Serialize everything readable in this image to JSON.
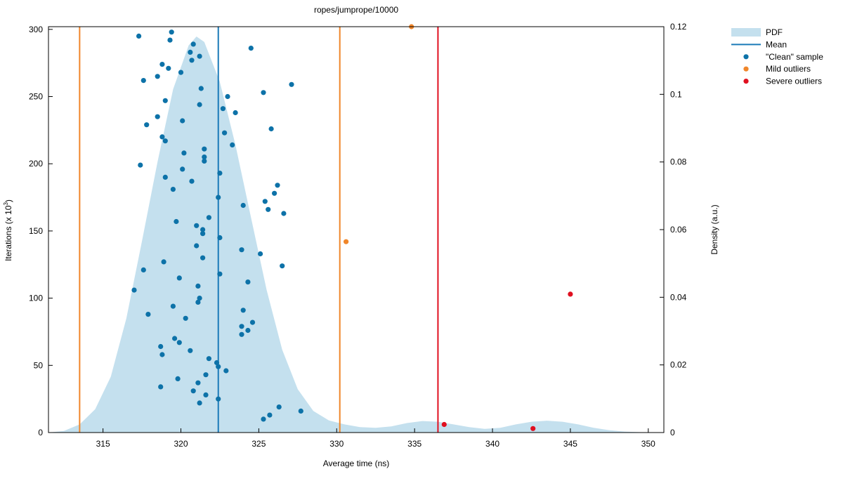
{
  "chart_data": {
    "type": "scatter",
    "title": "ropes/jumprope/10000",
    "xlabel": "Average time (ns)",
    "ylabel": "Iterations (x 10",
    "ylabel_exponent": "3",
    "ylabel_close": ")",
    "y2label": "Density (a.u.)",
    "xlim": [
      311.5,
      351
    ],
    "ylim": [
      0,
      302
    ],
    "y2lim": [
      0,
      0.12
    ],
    "grid": false,
    "legend_position": "outside-top-right",
    "x_ticks": [
      315,
      320,
      325,
      330,
      335,
      340,
      345,
      350
    ],
    "x_tick_labels": [
      "315",
      "320",
      "325",
      "330",
      "335",
      "340",
      "345",
      "350"
    ],
    "y_ticks": [
      0,
      50,
      100,
      150,
      200,
      250,
      300
    ],
    "y_tick_labels": [
      "0",
      "50",
      "100",
      "150",
      "200",
      "250",
      "300"
    ],
    "y2_ticks": [
      0,
      0.02,
      0.04,
      0.06,
      0.08,
      0.1,
      0.12
    ],
    "y2_tick_labels": [
      "0",
      "0.02",
      "0.04",
      "0.06",
      "0.08",
      "0.1",
      "0.12"
    ],
    "colors": {
      "pdf": "#c4e0ee",
      "mean": "#1a7ab8",
      "clean": "#0d72a8",
      "mild": "#f0862a",
      "severe": "#e01020"
    },
    "pdf": {
      "x": [
        311.5,
        312.5,
        313.5,
        314.5,
        315.5,
        316.5,
        317.5,
        318.5,
        319.5,
        320.5,
        321.0,
        321.5,
        322.5,
        323.5,
        324.5,
        325.5,
        326.5,
        327.5,
        328.5,
        329.5,
        330.5,
        331.5,
        332.5,
        333.5,
        334.5,
        335.5,
        336.5,
        337.5,
        338.5,
        339.5,
        340.5,
        341.5,
        342.5,
        343.5,
        344.5,
        345.5,
        346.5,
        347.5,
        348.5,
        349.5,
        350.5
      ],
      "y": [
        0.0,
        0.0005,
        0.0024,
        0.0069,
        0.0165,
        0.0338,
        0.0566,
        0.08,
        0.1015,
        0.1145,
        0.1171,
        0.1155,
        0.1037,
        0.0851,
        0.0636,
        0.0422,
        0.0245,
        0.0128,
        0.0064,
        0.0036,
        0.0024,
        0.0016,
        0.0014,
        0.0018,
        0.0028,
        0.0034,
        0.0032,
        0.0024,
        0.0016,
        0.0011,
        0.0014,
        0.0024,
        0.0032,
        0.0035,
        0.0032,
        0.0024,
        0.0014,
        0.0007,
        0.0003,
        0.0001,
        0.0
      ]
    },
    "mean": 322.4,
    "mild_lines": [
      313.5,
      330.2
    ],
    "severe_lines": [
      336.5
    ],
    "series": [
      {
        "name": "\"Clean\" sample",
        "points": [
          [
            319.4,
            298
          ],
          [
            317.3,
            295
          ],
          [
            319.3,
            292
          ],
          [
            320.8,
            289
          ],
          [
            321.2,
            280
          ],
          [
            320.6,
            283
          ],
          [
            324.5,
            286
          ],
          [
            318.8,
            274
          ],
          [
            320.7,
            277
          ],
          [
            319.2,
            271
          ],
          [
            318.5,
            265
          ],
          [
            320.0,
            268
          ],
          [
            317.6,
            262
          ],
          [
            327.1,
            259
          ],
          [
            321.3,
            256
          ],
          [
            325.3,
            253
          ],
          [
            323.0,
            250
          ],
          [
            319.0,
            247
          ],
          [
            321.2,
            244
          ],
          [
            322.7,
            241
          ],
          [
            323.5,
            238
          ],
          [
            318.5,
            235
          ],
          [
            320.1,
            232
          ],
          [
            317.8,
            229
          ],
          [
            325.8,
            226
          ],
          [
            322.8,
            223
          ],
          [
            318.8,
            220
          ],
          [
            319.0,
            217
          ],
          [
            323.3,
            214
          ],
          [
            321.5,
            211
          ],
          [
            320.2,
            208
          ],
          [
            321.5,
            205
          ],
          [
            321.5,
            202
          ],
          [
            317.4,
            199
          ],
          [
            320.1,
            196
          ],
          [
            322.5,
            193
          ],
          [
            319.0,
            190
          ],
          [
            320.7,
            187
          ],
          [
            326.2,
            184
          ],
          [
            319.5,
            181
          ],
          [
            326.0,
            178
          ],
          [
            322.4,
            175
          ],
          [
            325.4,
            172
          ],
          [
            324.0,
            169
          ],
          [
            325.6,
            166
          ],
          [
            326.6,
            163
          ],
          [
            321.8,
            160
          ],
          [
            319.7,
            157
          ],
          [
            321.0,
            154
          ],
          [
            321.4,
            151
          ],
          [
            321.4,
            148
          ],
          [
            322.5,
            145
          ],
          [
            321.0,
            139
          ],
          [
            323.9,
            136
          ],
          [
            325.1,
            133
          ],
          [
            321.4,
            130
          ],
          [
            318.9,
            127
          ],
          [
            326.5,
            124
          ],
          [
            317.6,
            121
          ],
          [
            322.5,
            118
          ],
          [
            319.9,
            115
          ],
          [
            324.3,
            112
          ],
          [
            321.1,
            109
          ],
          [
            317.0,
            106
          ],
          [
            321.2,
            100
          ],
          [
            321.1,
            97
          ],
          [
            319.5,
            94
          ],
          [
            324.0,
            91
          ],
          [
            317.9,
            88
          ],
          [
            320.3,
            85
          ],
          [
            324.6,
            82
          ],
          [
            323.9,
            79
          ],
          [
            324.3,
            76
          ],
          [
            323.9,
            73
          ],
          [
            319.6,
            70
          ],
          [
            319.9,
            67
          ],
          [
            318.7,
            64
          ],
          [
            320.6,
            61
          ],
          [
            318.8,
            58
          ],
          [
            321.8,
            55
          ],
          [
            322.3,
            52
          ],
          [
            322.4,
            49
          ],
          [
            322.9,
            46
          ],
          [
            321.6,
            43
          ],
          [
            319.8,
            40
          ],
          [
            321.1,
            37
          ],
          [
            318.7,
            34
          ],
          [
            320.8,
            31
          ],
          [
            321.6,
            28
          ],
          [
            322.4,
            25
          ],
          [
            321.2,
            22
          ],
          [
            327.7,
            16
          ],
          [
            326.3,
            19
          ],
          [
            325.7,
            13
          ],
          [
            325.3,
            10
          ]
        ]
      },
      {
        "name": "Mild outliers",
        "points": [
          [
            334.8,
            302
          ],
          [
            330.6,
            142
          ]
        ]
      },
      {
        "name": "Severe outliers",
        "points": [
          [
            336.9,
            6
          ],
          [
            342.6,
            3
          ],
          [
            345.0,
            103
          ]
        ]
      }
    ],
    "legend": [
      {
        "label": "PDF",
        "kind": "box",
        "color_key": "pdf"
      },
      {
        "label": "Mean",
        "kind": "line",
        "color_key": "mean"
      },
      {
        "label": "\"Clean\" sample",
        "kind": "dot",
        "color_key": "clean"
      },
      {
        "label": "Mild outliers",
        "kind": "dot",
        "color_key": "mild"
      },
      {
        "label": "Severe outliers",
        "kind": "dot",
        "color_key": "severe"
      }
    ]
  }
}
